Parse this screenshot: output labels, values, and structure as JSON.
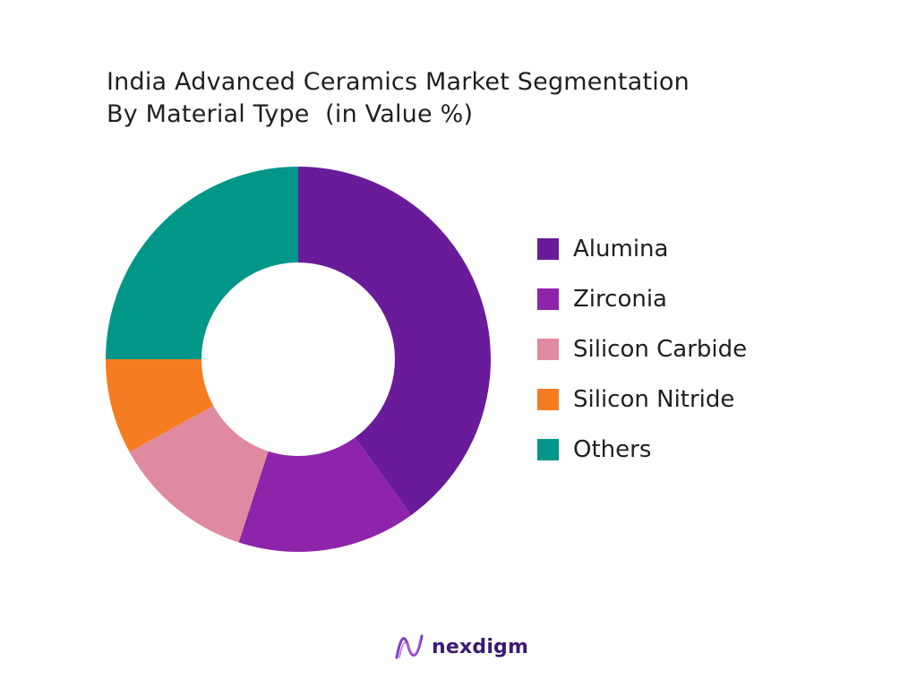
{
  "chart_data": {
    "type": "pie",
    "subtype": "donut",
    "title_lines": [
      "India Advanced Ceramics Market Segmentation",
      "By Material Type  (in Value %)"
    ],
    "categories": [
      "Alumina",
      "Zirconia",
      "Silicon Carbide",
      "Silicon Nitride",
      "Others"
    ],
    "values": [
      40,
      15,
      12,
      8,
      25
    ],
    "colors": [
      "#6a1b9a",
      "#8e24aa",
      "#e08aa2",
      "#f57c20",
      "#009688"
    ],
    "legend_position": "right"
  },
  "logo": {
    "text": "nexdigm",
    "icon": "nexdigm-logo-icon"
  }
}
